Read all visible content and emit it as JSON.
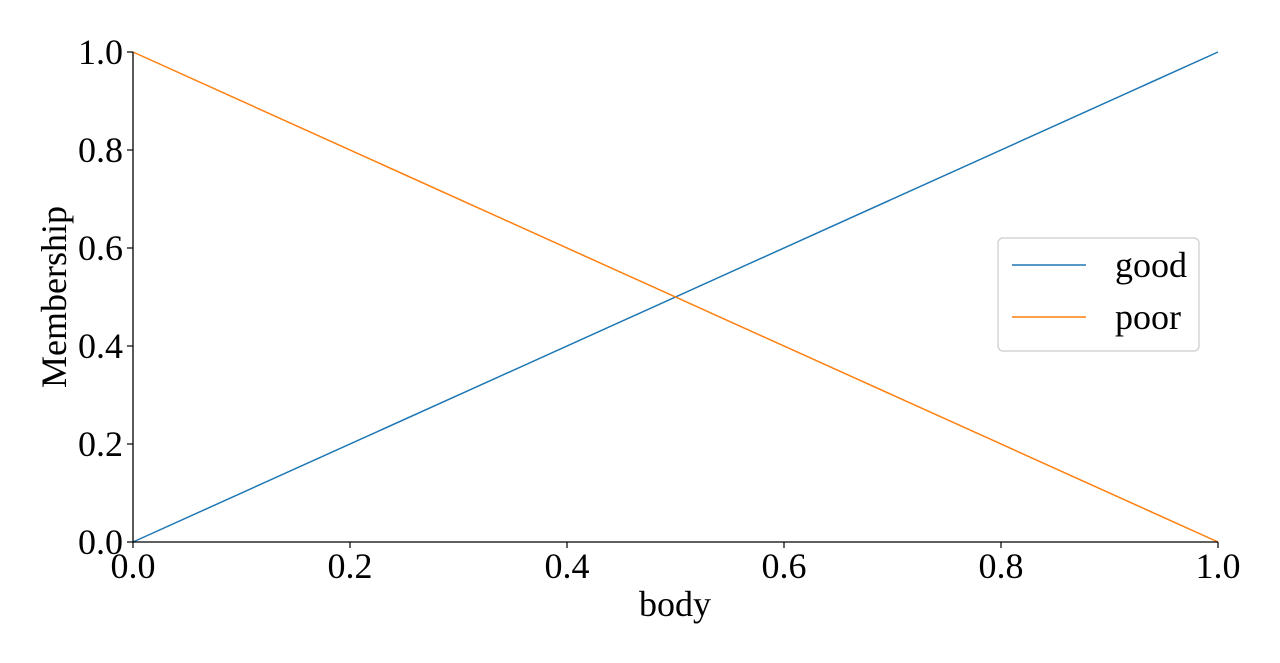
{
  "chart_data": {
    "type": "line",
    "xlabel": "body",
    "ylabel": "Membership",
    "xlim": [
      0.0,
      1.0
    ],
    "ylim": [
      0.0,
      1.0
    ],
    "x_ticks": [
      "0.0",
      "0.2",
      "0.4",
      "0.6",
      "0.8",
      "1.0"
    ],
    "y_ticks": [
      "0.0",
      "0.2",
      "0.4",
      "0.6",
      "0.8",
      "1.0"
    ],
    "grid": false,
    "legend_position": "center-right",
    "series": [
      {
        "name": "good",
        "color": "#1f77b4",
        "x": [
          0.0,
          1.0
        ],
        "y": [
          0.0,
          1.0
        ]
      },
      {
        "name": "poor",
        "color": "#ff7f0e",
        "x": [
          0.0,
          1.0
        ],
        "y": [
          1.0,
          0.0
        ]
      }
    ]
  }
}
